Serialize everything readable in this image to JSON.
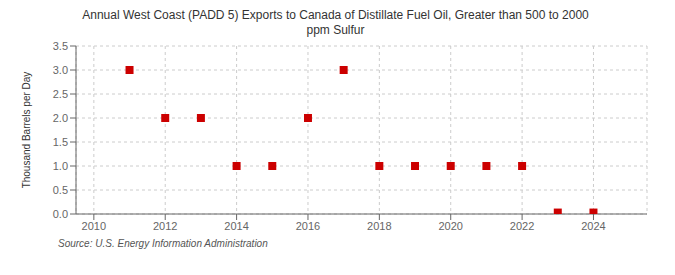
{
  "chart_data": {
    "type": "scatter",
    "title": "Annual West Coast (PADD 5) Exports to Canada of Distillate Fuel Oil, Greater than 500 to 2000\nppm Sulfur",
    "ylabel": "Thousand Barrels per Day",
    "source": "Source: U.S. Energy Information Administration",
    "x": [
      2011,
      2012,
      2013,
      2014,
      2015,
      2016,
      2017,
      2018,
      2019,
      2020,
      2021,
      2022,
      2023,
      2024
    ],
    "values": [
      3.0,
      2.0,
      2.0,
      1.0,
      1.0,
      2.0,
      3.0,
      1.0,
      1.0,
      1.0,
      1.0,
      1.0,
      0.03,
      0.03
    ],
    "color": "#cc0000",
    "marker": "square",
    "xlim": [
      2009.5,
      2025.5
    ],
    "ylim": [
      0.0,
      3.5
    ],
    "xticks": [
      2010,
      2012,
      2014,
      2016,
      2018,
      2020,
      2022,
      2024
    ],
    "yticks": [
      {
        "value": 0.0,
        "label": "0.0"
      },
      0.5,
      {
        "value": 1.0,
        "label": "1.0"
      },
      1.5,
      {
        "value": 2.0,
        "label": "2.0"
      },
      2.5,
      {
        "value": 3.0,
        "label": "3.0"
      },
      3.5
    ],
    "grid": true
  }
}
